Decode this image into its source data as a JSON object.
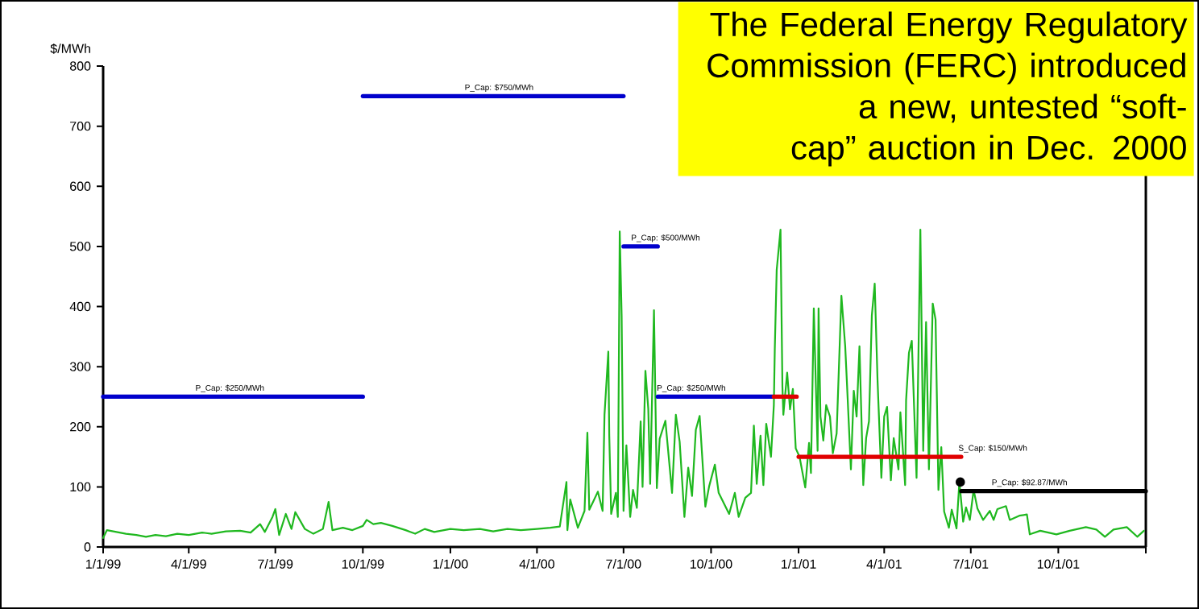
{
  "chart_data": {
    "type": "line",
    "ylabel": "$/MWh",
    "xlim": [
      "1999-01-01",
      "2002-01-01"
    ],
    "xticks": [
      {
        "value": "1999-01-01",
        "label": "1/1/99"
      },
      {
        "value": "1999-04-01",
        "label": "4/1/99"
      },
      {
        "value": "1999-07-01",
        "label": "7/1/99"
      },
      {
        "value": "1999-10-01",
        "label": "10/1/99"
      },
      {
        "value": "2000-01-01",
        "label": "1/1/00"
      },
      {
        "value": "2000-04-01",
        "label": "4/1/00"
      },
      {
        "value": "2000-07-01",
        "label": "7/1/00"
      },
      {
        "value": "2000-10-01",
        "label": "10/1/00"
      },
      {
        "value": "2001-01-01",
        "label": "1/1/01"
      },
      {
        "value": "2001-04-01",
        "label": "4/1/01"
      },
      {
        "value": "2001-07-01",
        "label": "7/1/01"
      },
      {
        "value": "2001-10-01",
        "label": "10/1/01"
      },
      {
        "value": "2002-01-01",
        "label": null
      }
    ],
    "ylim": [
      0,
      800
    ],
    "yticks": [
      0,
      100,
      200,
      300,
      400,
      500,
      600,
      700,
      800
    ],
    "series": [
      {
        "color": "#1fb81f",
        "x": [
          "1999-01-01",
          "1999-01-05",
          "1999-01-15",
          "1999-01-25",
          "1999-02-05",
          "1999-02-15",
          "1999-02-25",
          "1999-03-08",
          "1999-03-20",
          "1999-04-01",
          "1999-04-15",
          "1999-04-25",
          "1999-05-10",
          "1999-05-25",
          "1999-06-05",
          "1999-06-15",
          "1999-06-20",
          "1999-06-28",
          "1999-07-01",
          "1999-07-05",
          "1999-07-12",
          "1999-07-18",
          "1999-07-22",
          "1999-08-01",
          "1999-08-10",
          "1999-08-20",
          "1999-08-26",
          "1999-08-30",
          "1999-09-10",
          "1999-09-20",
          "1999-10-01",
          "1999-10-05",
          "1999-10-12",
          "1999-10-20",
          "1999-11-01",
          "1999-11-15",
          "1999-11-25",
          "1999-12-05",
          "1999-12-15",
          "2000-01-01",
          "2000-01-15",
          "2000-02-01",
          "2000-02-15",
          "2000-03-01",
          "2000-03-15",
          "2000-04-01",
          "2000-04-15",
          "2000-04-25",
          "2000-05-02",
          "2000-05-03",
          "2000-05-06",
          "2000-05-14",
          "2000-05-21",
          "2000-05-24",
          "2000-05-26",
          "2000-05-30",
          "2000-06-04",
          "2000-06-09",
          "2000-06-11",
          "2000-06-15",
          "2000-06-16",
          "2000-06-18",
          "2000-06-23",
          "2000-06-25",
          "2000-06-27",
          "2000-06-29",
          "2000-07-01",
          "2000-07-04",
          "2000-07-08",
          "2000-07-11",
          "2000-07-15",
          "2000-07-19",
          "2000-07-21",
          "2000-07-24",
          "2000-07-27",
          "2000-07-29",
          "2000-08-02",
          "2000-08-05",
          "2000-08-08",
          "2000-08-14",
          "2000-08-21",
          "2000-08-25",
          "2000-08-29",
          "2000-09-03",
          "2000-09-07",
          "2000-09-11",
          "2000-09-15",
          "2000-09-19",
          "2000-09-25",
          "2000-09-29",
          "2000-10-05",
          "2000-10-09",
          "2000-10-20",
          "2000-10-26",
          "2000-10-30",
          "2000-11-06",
          "2000-11-12",
          "2000-11-15",
          "2000-11-18",
          "2000-11-22",
          "2000-11-25",
          "2000-11-28",
          "2000-12-03",
          "2000-12-06",
          "2000-12-07",
          "2000-12-09",
          "2000-12-13",
          "2000-12-15",
          "2000-12-16",
          "2000-12-20",
          "2000-12-23",
          "2000-12-26",
          "2000-12-29",
          "2001-01-02",
          "2001-01-08",
          "2001-01-12",
          "2001-01-14",
          "2001-01-17",
          "2001-01-21",
          "2001-01-22",
          "2001-01-24",
          "2001-01-27",
          "2001-01-30",
          "2001-02-03",
          "2001-02-06",
          "2001-02-10",
          "2001-02-15",
          "2001-02-19",
          "2001-02-21",
          "2001-02-25",
          "2001-02-28",
          "2001-03-03",
          "2001-03-06",
          "2001-03-10",
          "2001-03-13",
          "2001-03-16",
          "2001-03-19",
          "2001-03-22",
          "2001-03-25",
          "2001-03-29",
          "2001-04-01",
          "2001-04-04",
          "2001-04-08",
          "2001-04-11",
          "2001-04-16",
          "2001-04-18",
          "2001-04-23",
          "2001-04-24",
          "2001-04-27",
          "2001-04-30",
          "2001-05-05",
          "2001-05-09",
          "2001-05-12",
          "2001-05-15",
          "2001-05-18",
          "2001-05-22",
          "2001-05-25",
          "2001-05-28",
          "2001-05-31",
          "2001-06-03",
          "2001-06-08",
          "2001-06-11",
          "2001-06-16",
          "2001-06-19",
          "2001-06-23",
          "2001-06-26",
          "2001-06-30",
          "2001-07-04",
          "2001-07-08",
          "2001-07-14",
          "2001-07-21",
          "2001-07-25",
          "2001-07-29",
          "2001-08-07",
          "2001-08-11",
          "2001-08-21",
          "2001-08-29",
          "2001-09-01",
          "2001-09-12",
          "2001-09-29",
          "2001-10-13",
          "2001-10-30",
          "2001-11-10",
          "2001-11-19",
          "2001-11-28",
          "2001-12-12",
          "2001-12-23",
          "2001-12-30"
        ],
        "values": [
          15,
          28,
          25,
          22,
          20,
          17,
          20,
          18,
          22,
          20,
          24,
          22,
          26,
          27,
          24,
          38,
          25,
          50,
          63,
          20,
          55,
          30,
          58,
          30,
          22,
          30,
          75,
          28,
          32,
          28,
          35,
          45,
          38,
          40,
          35,
          28,
          22,
          30,
          25,
          30,
          28,
          30,
          26,
          30,
          28,
          30,
          32,
          34,
          108,
          28,
          79,
          32,
          60,
          190,
          62,
          75,
          92,
          60,
          220,
          325,
          185,
          55,
          90,
          50,
          525,
          385,
          60,
          169,
          50,
          95,
          65,
          209,
          100,
          293,
          230,
          105,
          394,
          98,
          180,
          210,
          90,
          220,
          175,
          50,
          132,
          85,
          195,
          218,
          67,
          101,
          137,
          90,
          55,
          90,
          50,
          82,
          90,
          202,
          105,
          185,
          103,
          205,
          150,
          236,
          330,
          461,
          528,
          267,
          220,
          290,
          229,
          263,
          164,
          150,
          99,
          173,
          123,
          397,
          160,
          397,
          217,
          177,
          236,
          217,
          156,
          189,
          418,
          334,
          267,
          129,
          260,
          217,
          334,
          103,
          181,
          209,
          385,
          438,
          277,
          115,
          217,
          233,
          111,
          181,
          129,
          224,
          103,
          244,
          323,
          343,
          115,
          528,
          160,
          374,
          129,
          405,
          378,
          95,
          166,
          59,
          32,
          62,
          31,
          108,
          42,
          66,
          45,
          95,
          64,
          45,
          60,
          45,
          63,
          68,
          45,
          52,
          54,
          21,
          27,
          21,
          27,
          33,
          29,
          17,
          29,
          33,
          17,
          27
        ]
      },
      {
        "color": "#0000cc",
        "x": [
          "1999-01-01",
          "1999-10-01"
        ],
        "values": [
          250,
          250
        ]
      },
      {
        "color": "#0000cc",
        "x": [
          "1999-10-01",
          "2000-07-01"
        ],
        "values": [
          750,
          750
        ]
      },
      {
        "color": "#0000cc",
        "x": [
          "2000-07-01",
          "2000-08-06"
        ],
        "values": [
          500,
          500
        ]
      },
      {
        "color": "#0000cc",
        "x": [
          "2000-08-06",
          "2000-12-06"
        ],
        "values": [
          250,
          250
        ]
      },
      {
        "color": "#e00000",
        "x": [
          "2000-12-06",
          "2000-12-30"
        ],
        "values": [
          250,
          250
        ]
      },
      {
        "color": "#e00000",
        "x": [
          "2001-01-01",
          "2001-06-21"
        ],
        "values": [
          150,
          150
        ]
      },
      {
        "type": "scatter",
        "color": "#000000",
        "x": [
          "2001-06-20"
        ],
        "values": [
          108
        ]
      },
      {
        "color": "#000000",
        "x": [
          "2001-06-21",
          "2002-01-01"
        ],
        "values": [
          92.87,
          92.87
        ]
      }
    ],
    "annotations": [
      {
        "text": "P_Cap: $250/MWh",
        "x": "1999-04-06",
        "y": 250
      },
      {
        "text": "P_Cap: $750/MWh",
        "x": "2000-01-14",
        "y": 750
      },
      {
        "text": "P_Cap: $500/MWh",
        "x": "2000-07-07",
        "y": 500
      },
      {
        "text": "P_Cap: $250/MWh",
        "x": "2000-08-03",
        "y": 250
      },
      {
        "text": "S_Cap: $150/MWh",
        "x": "2001-06-16",
        "y": 150
      },
      {
        "text": "P_Cap: $92.87/MWh",
        "x": "2001-07-21",
        "y": 92.87
      },
      "The Federal Energy Regulatory Commission (FERC) introduced a new, untested “soft-cap” auction in Dec. 2000"
    ]
  }
}
